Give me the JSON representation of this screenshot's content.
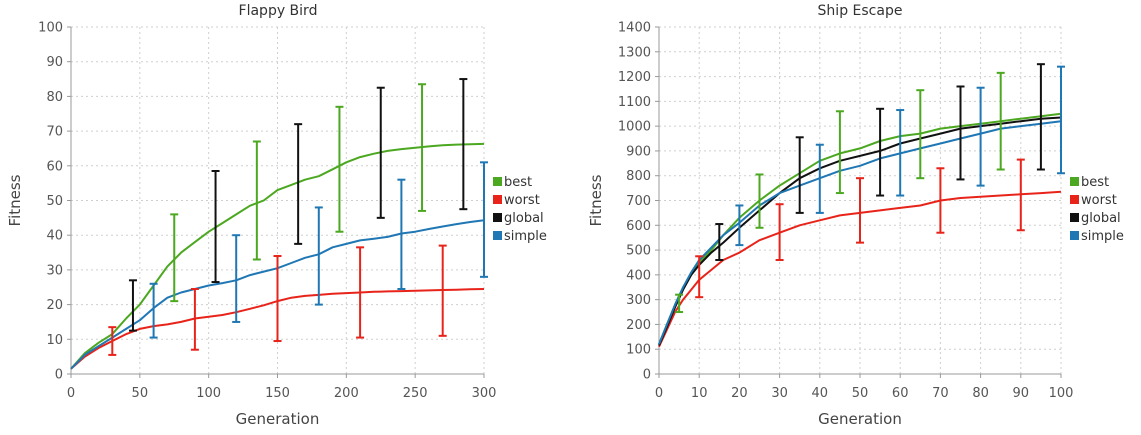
{
  "chart_data": [
    {
      "type": "line",
      "title": "Flappy Bird",
      "xlabel": "Generation",
      "ylabel": "Fitness",
      "xlim": [
        0,
        300
      ],
      "ylim": [
        0,
        100
      ],
      "x_ticks": [
        "0",
        "50",
        "100",
        "150",
        "200",
        "250",
        "300"
      ],
      "y_ticks": [
        "0",
        "10",
        "20",
        "30",
        "40",
        "50",
        "60",
        "70",
        "80",
        "90",
        "100"
      ],
      "grid": true,
      "legend": "right",
      "series": [
        {
          "name": "best",
          "color": "#4ca820",
          "x": [
            0,
            10,
            20,
            30,
            40,
            50,
            60,
            70,
            80,
            90,
            100,
            110,
            120,
            130,
            140,
            150,
            160,
            170,
            180,
            190,
            200,
            210,
            220,
            230,
            240,
            250,
            260,
            270,
            280,
            290,
            300
          ],
          "values": [
            1.5,
            6,
            9,
            11.5,
            16,
            20,
            25.5,
            31,
            35,
            38,
            41,
            43.5,
            46,
            48.5,
            50,
            53,
            54.5,
            56,
            57,
            59,
            61,
            62.5,
            63.5,
            64.3,
            64.8,
            65.2,
            65.6,
            65.9,
            66.1,
            66.2,
            66.3
          ],
          "error_bars": [
            {
              "x": 75,
              "low": 21,
              "high": 46
            },
            {
              "x": 135,
              "low": 33,
              "high": 67
            },
            {
              "x": 195,
              "low": 41,
              "high": 77
            },
            {
              "x": 255,
              "low": 47,
              "high": 83.5
            }
          ]
        },
        {
          "name": "worst",
          "color": "#e8231a",
          "x": [
            0,
            10,
            20,
            30,
            40,
            50,
            60,
            70,
            80,
            90,
            100,
            110,
            120,
            130,
            140,
            150,
            160,
            170,
            180,
            190,
            200,
            210,
            220,
            230,
            240,
            250,
            260,
            270,
            280,
            290,
            300
          ],
          "values": [
            1.5,
            5,
            7.5,
            9.5,
            11.5,
            13,
            13.8,
            14.3,
            15,
            16,
            16.5,
            17,
            17.8,
            18.8,
            19.8,
            21,
            22,
            22.5,
            22.8,
            23.1,
            23.3,
            23.5,
            23.7,
            23.8,
            23.9,
            24,
            24.1,
            24.2,
            24.3,
            24.4,
            24.5
          ],
          "error_bars": [
            {
              "x": 30,
              "low": 5.5,
              "high": 13.5
            },
            {
              "x": 90,
              "low": 7,
              "high": 24.5
            },
            {
              "x": 150,
              "low": 9.5,
              "high": 34
            },
            {
              "x": 210,
              "low": 10.5,
              "high": 36.5
            },
            {
              "x": 270,
              "low": 11,
              "high": 37
            }
          ]
        },
        {
          "name": "global",
          "color": "#111111",
          "x": [],
          "values": [],
          "error_bars": [
            {
              "x": 45,
              "low": 12.5,
              "high": 27
            },
            {
              "x": 105,
              "low": 26.5,
              "high": 58.5
            },
            {
              "x": 165,
              "low": 37.5,
              "high": 72
            },
            {
              "x": 225,
              "low": 45,
              "high": 82.5
            },
            {
              "x": 285,
              "low": 47.5,
              "high": 85
            }
          ]
        },
        {
          "name": "simple",
          "color": "#1f77b4",
          "x": [
            0,
            10,
            20,
            30,
            40,
            50,
            60,
            70,
            80,
            90,
            100,
            110,
            120,
            130,
            140,
            150,
            160,
            170,
            180,
            190,
            200,
            210,
            220,
            230,
            240,
            250,
            260,
            270,
            280,
            290,
            300
          ],
          "values": [
            1.5,
            5.5,
            8,
            10.5,
            13,
            15.5,
            19,
            22,
            23.5,
            24.5,
            25.5,
            26.2,
            27,
            28.5,
            29.5,
            30.5,
            32,
            33.5,
            34.5,
            36.5,
            37.5,
            38.5,
            39,
            39.5,
            40.5,
            41,
            41.8,
            42.5,
            43.2,
            43.8,
            44.3
          ],
          "error_bars": [
            {
              "x": 60,
              "low": 10.5,
              "high": 26
            },
            {
              "x": 120,
              "low": 15,
              "high": 40
            },
            {
              "x": 180,
              "low": 20,
              "high": 48
            },
            {
              "x": 240,
              "low": 24.5,
              "high": 56
            },
            {
              "x": 300,
              "low": 28,
              "high": 61
            }
          ]
        }
      ]
    },
    {
      "type": "line",
      "title": "Ship Escape",
      "xlabel": "Generation",
      "ylabel": "Fitness",
      "xlim": [
        0,
        100
      ],
      "ylim": [
        0,
        1400
      ],
      "x_ticks": [
        "0",
        "10",
        "20",
        "30",
        "40",
        "50",
        "60",
        "70",
        "80",
        "90",
        "100"
      ],
      "y_ticks": [
        "0",
        "100",
        "200",
        "300",
        "400",
        "500",
        "600",
        "700",
        "800",
        "900",
        "1000",
        "1100",
        "1200",
        "1300",
        "1400"
      ],
      "grid": true,
      "legend": "right",
      "series": [
        {
          "name": "best",
          "color": "#4ca820",
          "x": [
            0,
            2,
            4,
            6,
            8,
            10,
            13,
            16,
            20,
            25,
            30,
            35,
            40,
            45,
            50,
            55,
            60,
            65,
            70,
            75,
            80,
            85,
            90,
            95,
            100
          ],
          "values": [
            120,
            200,
            280,
            350,
            400,
            450,
            500,
            560,
            630,
            700,
            760,
            810,
            860,
            890,
            910,
            940,
            960,
            970,
            990,
            1000,
            1010,
            1020,
            1030,
            1040,
            1050
          ],
          "error_bars": [
            {
              "x": 5,
              "low": 250,
              "high": 320
            },
            {
              "x": 25,
              "low": 590,
              "high": 805
            },
            {
              "x": 45,
              "low": 730,
              "high": 1060
            },
            {
              "x": 65,
              "low": 790,
              "high": 1145
            },
            {
              "x": 85,
              "low": 825,
              "high": 1215
            }
          ]
        },
        {
          "name": "worst",
          "color": "#e8231a",
          "x": [
            0,
            2,
            4,
            6,
            8,
            10,
            13,
            16,
            20,
            25,
            30,
            35,
            40,
            45,
            50,
            55,
            60,
            65,
            70,
            75,
            80,
            85,
            90,
            95,
            100
          ],
          "values": [
            110,
            180,
            250,
            300,
            340,
            380,
            420,
            460,
            490,
            540,
            570,
            600,
            620,
            640,
            650,
            660,
            670,
            680,
            700,
            710,
            715,
            720,
            725,
            730,
            735
          ],
          "error_bars": [
            {
              "x": 10,
              "low": 310,
              "high": 475
            },
            {
              "x": 30,
              "low": 460,
              "high": 685
            },
            {
              "x": 50,
              "low": 530,
              "high": 790
            },
            {
              "x": 70,
              "low": 570,
              "high": 830
            },
            {
              "x": 90,
              "low": 580,
              "high": 865
            }
          ]
        },
        {
          "name": "global",
          "color": "#111111",
          "x": [
            0,
            2,
            4,
            6,
            8,
            10,
            13,
            16,
            20,
            25,
            30,
            35,
            40,
            45,
            50,
            55,
            60,
            65,
            70,
            75,
            80,
            85,
            90,
            95,
            100
          ],
          "values": [
            115,
            190,
            270,
            340,
            400,
            440,
            490,
            530,
            590,
            660,
            730,
            790,
            830,
            860,
            880,
            900,
            930,
            950,
            970,
            990,
            1000,
            1010,
            1020,
            1030,
            1035
          ],
          "error_bars": [
            {
              "x": 15,
              "low": 460,
              "high": 605
            },
            {
              "x": 35,
              "low": 650,
              "high": 955
            },
            {
              "x": 55,
              "low": 720,
              "high": 1070
            },
            {
              "x": 75,
              "low": 785,
              "high": 1160
            },
            {
              "x": 95,
              "low": 825,
              "high": 1250
            }
          ]
        },
        {
          "name": "simple",
          "color": "#1f77b4",
          "x": [
            0,
            2,
            4,
            6,
            8,
            10,
            13,
            16,
            20,
            25,
            30,
            35,
            40,
            45,
            50,
            55,
            60,
            65,
            70,
            75,
            80,
            85,
            90,
            95,
            100
          ],
          "values": [
            120,
            200,
            280,
            350,
            410,
            460,
            510,
            560,
            610,
            680,
            730,
            760,
            790,
            820,
            840,
            870,
            890,
            910,
            930,
            950,
            970,
            990,
            1000,
            1010,
            1020
          ],
          "error_bars": [
            {
              "x": 20,
              "low": 520,
              "high": 680
            },
            {
              "x": 40,
              "low": 650,
              "high": 925
            },
            {
              "x": 60,
              "low": 720,
              "high": 1065
            },
            {
              "x": 80,
              "low": 760,
              "high": 1155
            },
            {
              "x": 100,
              "low": 810,
              "high": 1240
            }
          ]
        }
      ]
    }
  ]
}
